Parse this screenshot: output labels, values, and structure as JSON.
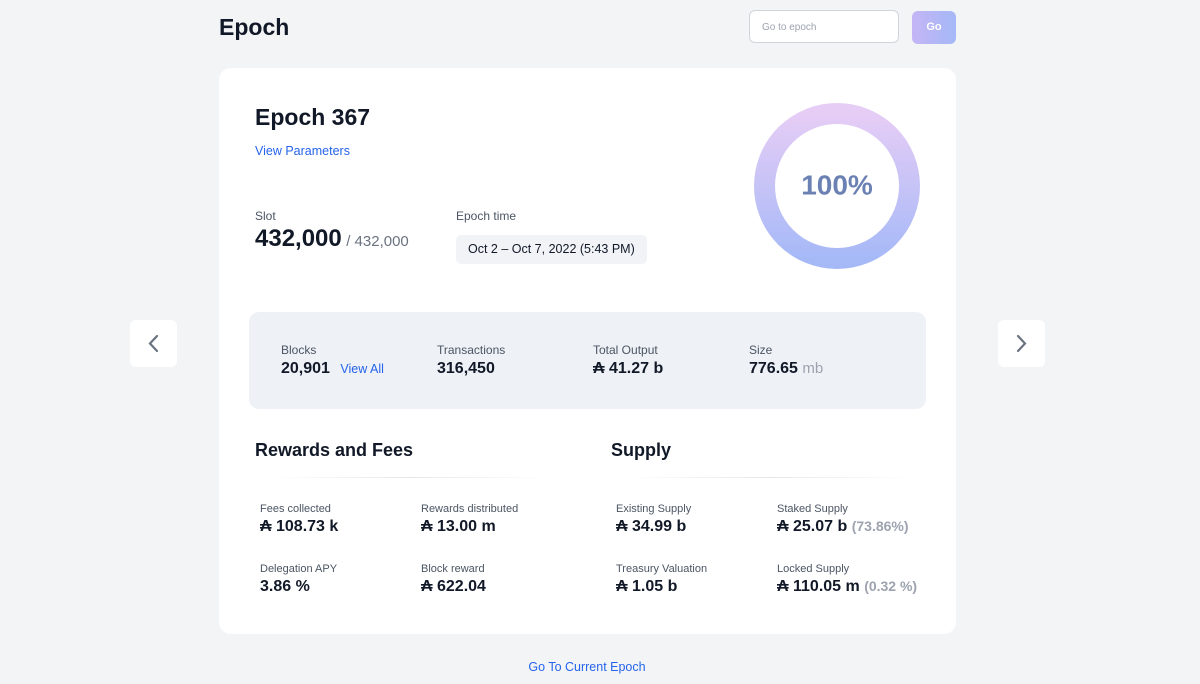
{
  "header": {
    "title": "Epoch",
    "search_placeholder": "Go to epoch",
    "search_button": "Go"
  },
  "epoch": {
    "title": "Epoch 367",
    "link": "View Parameters",
    "slot": {
      "label": "Slot",
      "value": "432,000",
      "total": "/ 432,000"
    },
    "epoch_time": {
      "label": "Epoch time",
      "value": "Oct 2 – Oct 7, 2022 (5:43 PM)"
    },
    "progress": "100%"
  },
  "stats": [
    {
      "label": "Blocks",
      "value": "20,901",
      "link": "View All"
    },
    {
      "label": "Transactions",
      "value": "316,450"
    },
    {
      "label": "Total Output",
      "value": "₳ 41.27 b"
    },
    {
      "label": "Size",
      "value": "776.65",
      "unit": "mb"
    }
  ],
  "sections": [
    {
      "title": "Rewards and Fees",
      "items": [
        {
          "label": "Fees collected",
          "value": "₳ 108.73 k"
        },
        {
          "label": "Rewards distributed",
          "value": "₳ 13.00 m"
        },
        {
          "label": "Delegation APY",
          "value": "3.86 %"
        },
        {
          "label": "Block reward",
          "value": "₳ 622.04"
        }
      ]
    },
    {
      "title": "Supply",
      "items": [
        {
          "label": "Existing Supply",
          "value": "₳ 34.99 b"
        },
        {
          "label": "Staked Supply",
          "value": "₳ 25.07 b",
          "note": "(73.86%)"
        },
        {
          "label": "Treasury Valuation",
          "value": "₳ 1.05 b"
        },
        {
          "label": "Locked Supply",
          "value": "₳ 110.05 m",
          "note": "(0.32 %)"
        }
      ]
    }
  ],
  "footer_link": "Go To Current Epoch"
}
